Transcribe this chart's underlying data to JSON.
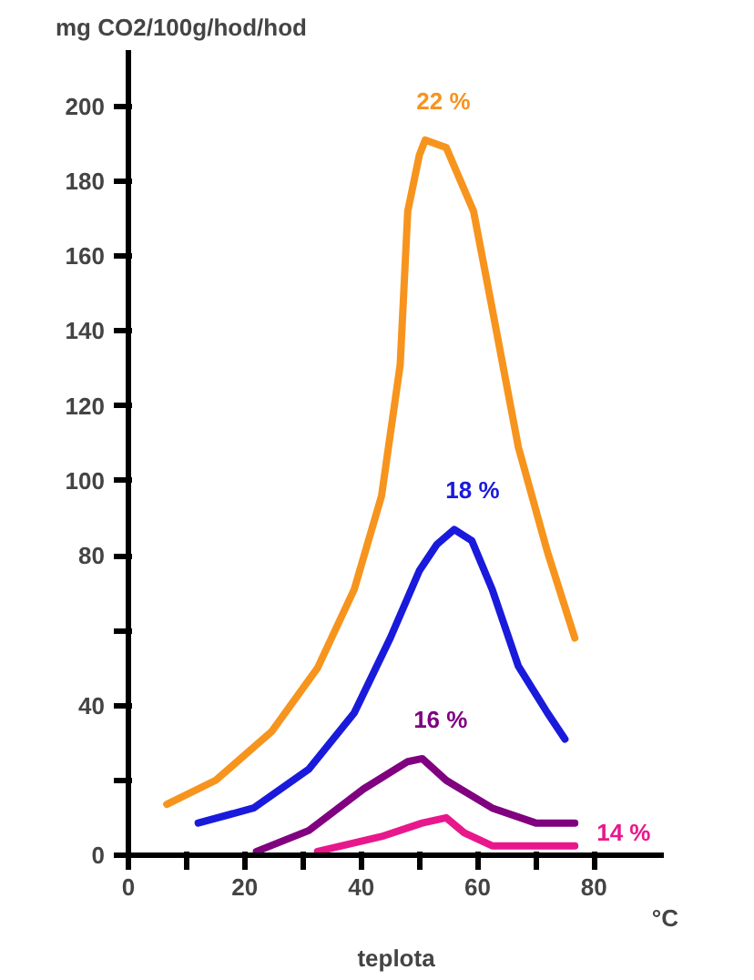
{
  "chart_data": {
    "type": "line",
    "ylabel": "mg CO2/100g/hod/hod",
    "xlabel": "teplota",
    "annotations": [
      "°C"
    ],
    "xlim": [
      0,
      92
    ],
    "ylim": [
      0,
      215
    ],
    "xticks": [
      0,
      {
        "value": 10,
        "label": null
      },
      20,
      {
        "value": 30,
        "label": null
      },
      40,
      {
        "value": 50,
        "label": null
      },
      60,
      {
        "value": 70,
        "label": null
      },
      80
    ],
    "yticks": [
      0,
      {
        "value": 20,
        "label": null
      },
      40,
      {
        "value": 60,
        "label": null
      },
      80,
      100,
      120,
      140,
      160,
      180,
      200
    ],
    "grid": false,
    "marker": "none",
    "line_style": "solid",
    "series": [
      {
        "name": "22 %",
        "color": "#f7941d",
        "x": [
          6.6,
          15,
          24.6,
          32.5,
          38.8,
          43.5,
          46.7,
          48,
          50,
          51,
          54.6,
          59.3,
          62.5,
          67,
          72,
          76.7
        ],
        "values": [
          13.6,
          20,
          33,
          50,
          71,
          96,
          131,
          172,
          187,
          191,
          189,
          172,
          146,
          109,
          81,
          58
        ]
      },
      {
        "name": "18 %",
        "color": "#1a1adc",
        "x": [
          12,
          21.5,
          31,
          38.8,
          45,
          50,
          53,
          56,
          59,
          62.5,
          67,
          72,
          75
        ],
        "values": [
          8.6,
          12.6,
          23,
          38,
          58,
          76,
          83,
          87,
          84,
          71,
          50.5,
          38,
          31
        ]
      },
      {
        "name": "16 %",
        "color": "#800080",
        "x": [
          22,
          31,
          40.4,
          48,
          50.5,
          54.6,
          62.5,
          70,
          76.7
        ],
        "values": [
          1,
          6.6,
          17.7,
          25,
          25.8,
          20,
          12.6,
          8.6,
          8.6
        ]
      },
      {
        "name": "14 %",
        "color": "#e8188c",
        "x": [
          32.5,
          43.5,
          50.5,
          54.6,
          57.7,
          62.5,
          76.7
        ],
        "values": [
          1,
          5,
          8.6,
          10,
          6,
          2.5,
          2.5
        ]
      }
    ]
  }
}
